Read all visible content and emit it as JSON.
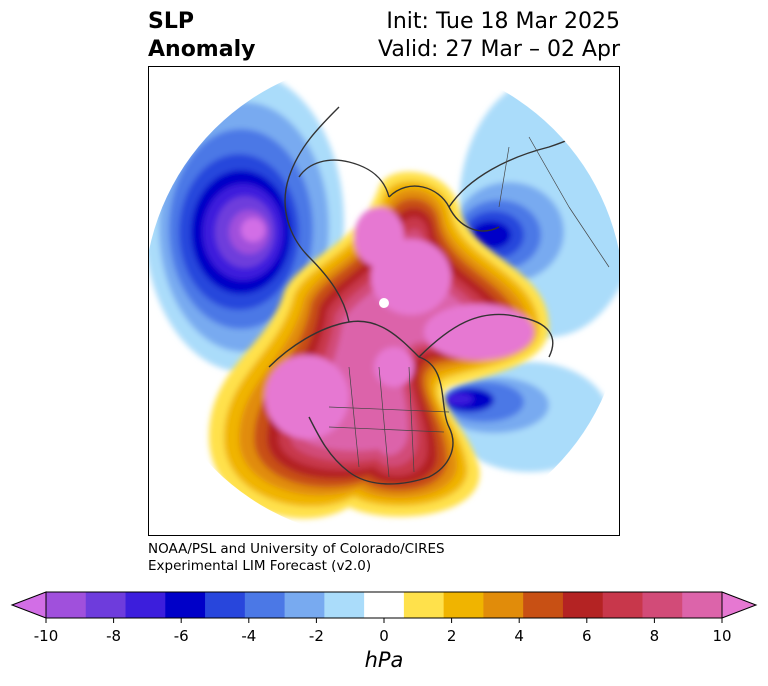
{
  "title": {
    "variable_line1": "SLP",
    "variable_line2": "Anomaly",
    "init": "Init: Tue 18 Mar 2025",
    "valid": "Valid: 27 Mar – 02 Apr"
  },
  "credit": {
    "line1": "NOAA/PSL and University of Colorado/CIRES",
    "line2": "Experimental LIM Forecast (v2.0)"
  },
  "colorbar": {
    "unit": "hPa",
    "ticks": [
      "-10",
      "-8",
      "-6",
      "-4",
      "-2",
      "0",
      "2",
      "4",
      "6",
      "8",
      "10"
    ],
    "colors": [
      "#d26ee6",
      "#a050dc",
      "#6e3cdc",
      "#3c1edc",
      "#0000c8",
      "#2846dc",
      "#4b78e6",
      "#78aaf0",
      "#aadcfa",
      "#ffffff",
      "#ffe14b",
      "#f0b400",
      "#e18c0a",
      "#c85014",
      "#b42323",
      "#c8374b",
      "#d24b78",
      "#dc64aa",
      "#e678d2"
    ],
    "extend": "both"
  },
  "map": {
    "projection": "north polar stereographic",
    "field": "sea level pressure anomaly",
    "features": [
      "positive anomaly over Arctic and North America",
      "negative anomaly over North Pacific",
      "negative anomaly over Scandinavia",
      "negative anomaly off Newfoundland"
    ]
  }
}
